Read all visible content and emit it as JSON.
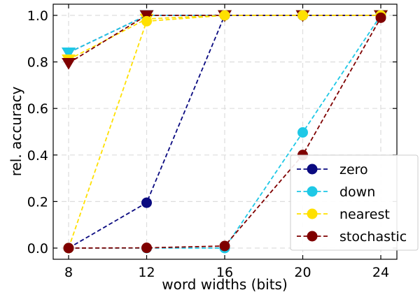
{
  "chart_data": {
    "type": "line",
    "title": "",
    "xlabel": "word widths (bits)",
    "ylabel": "rel. accuracy",
    "x_ticks": [
      8,
      12,
      16,
      20,
      24
    ],
    "y_ticks": [
      0.0,
      0.2,
      0.4,
      0.6,
      0.8,
      1.0
    ],
    "y_tick_labels": [
      "0.0",
      "0.2",
      "0.4",
      "0.6",
      "0.8",
      "1.0"
    ],
    "xlim": [
      7.0,
      25.0
    ],
    "ylim": [
      -0.03,
      1.03
    ],
    "grid": true,
    "legend_position": "lower-right",
    "line_style": "dashed",
    "series": [
      {
        "name": "zero",
        "color": "#0a0a80",
        "circle": {
          "x": [
            8,
            12,
            16,
            20,
            24
          ],
          "y": [
            0.0,
            0.195,
            1.0,
            1.0,
            1.0
          ]
        },
        "triangle": {
          "x": [
            8,
            12,
            16,
            20,
            24
          ],
          "y": [
            0.84,
            1.0,
            1.0,
            1.0,
            1.0
          ]
        }
      },
      {
        "name": "down",
        "color": "#1ec8e6",
        "circle": {
          "x": [
            8,
            12,
            16,
            20,
            24
          ],
          "y": [
            0.0,
            0.0,
            0.0,
            0.497,
            1.0
          ]
        },
        "triangle": {
          "x": [
            8,
            12,
            16,
            20,
            24
          ],
          "y": [
            0.84,
            1.0,
            1.0,
            1.0,
            1.0
          ]
        }
      },
      {
        "name": "nearest",
        "color": "#ffe000",
        "circle": {
          "x": [
            8,
            12,
            16,
            20,
            24
          ],
          "y": [
            0.0,
            0.975,
            1.0,
            1.0,
            1.0
          ]
        },
        "triangle": {
          "x": [
            8,
            12,
            16,
            20,
            24
          ],
          "y": [
            0.81,
            0.985,
            1.0,
            1.0,
            1.0
          ]
        }
      },
      {
        "name": "stochastic",
        "color": "#7f0000",
        "circle": {
          "x": [
            8,
            12,
            16,
            20,
            24
          ],
          "y": [
            0.0,
            0.001,
            0.009,
            0.4,
            0.99
          ]
        },
        "triangle": {
          "x": [
            8,
            12,
            16,
            20,
            24
          ],
          "y": [
            0.795,
            1.0,
            1.0,
            1.0,
            1.0
          ]
        }
      }
    ]
  }
}
